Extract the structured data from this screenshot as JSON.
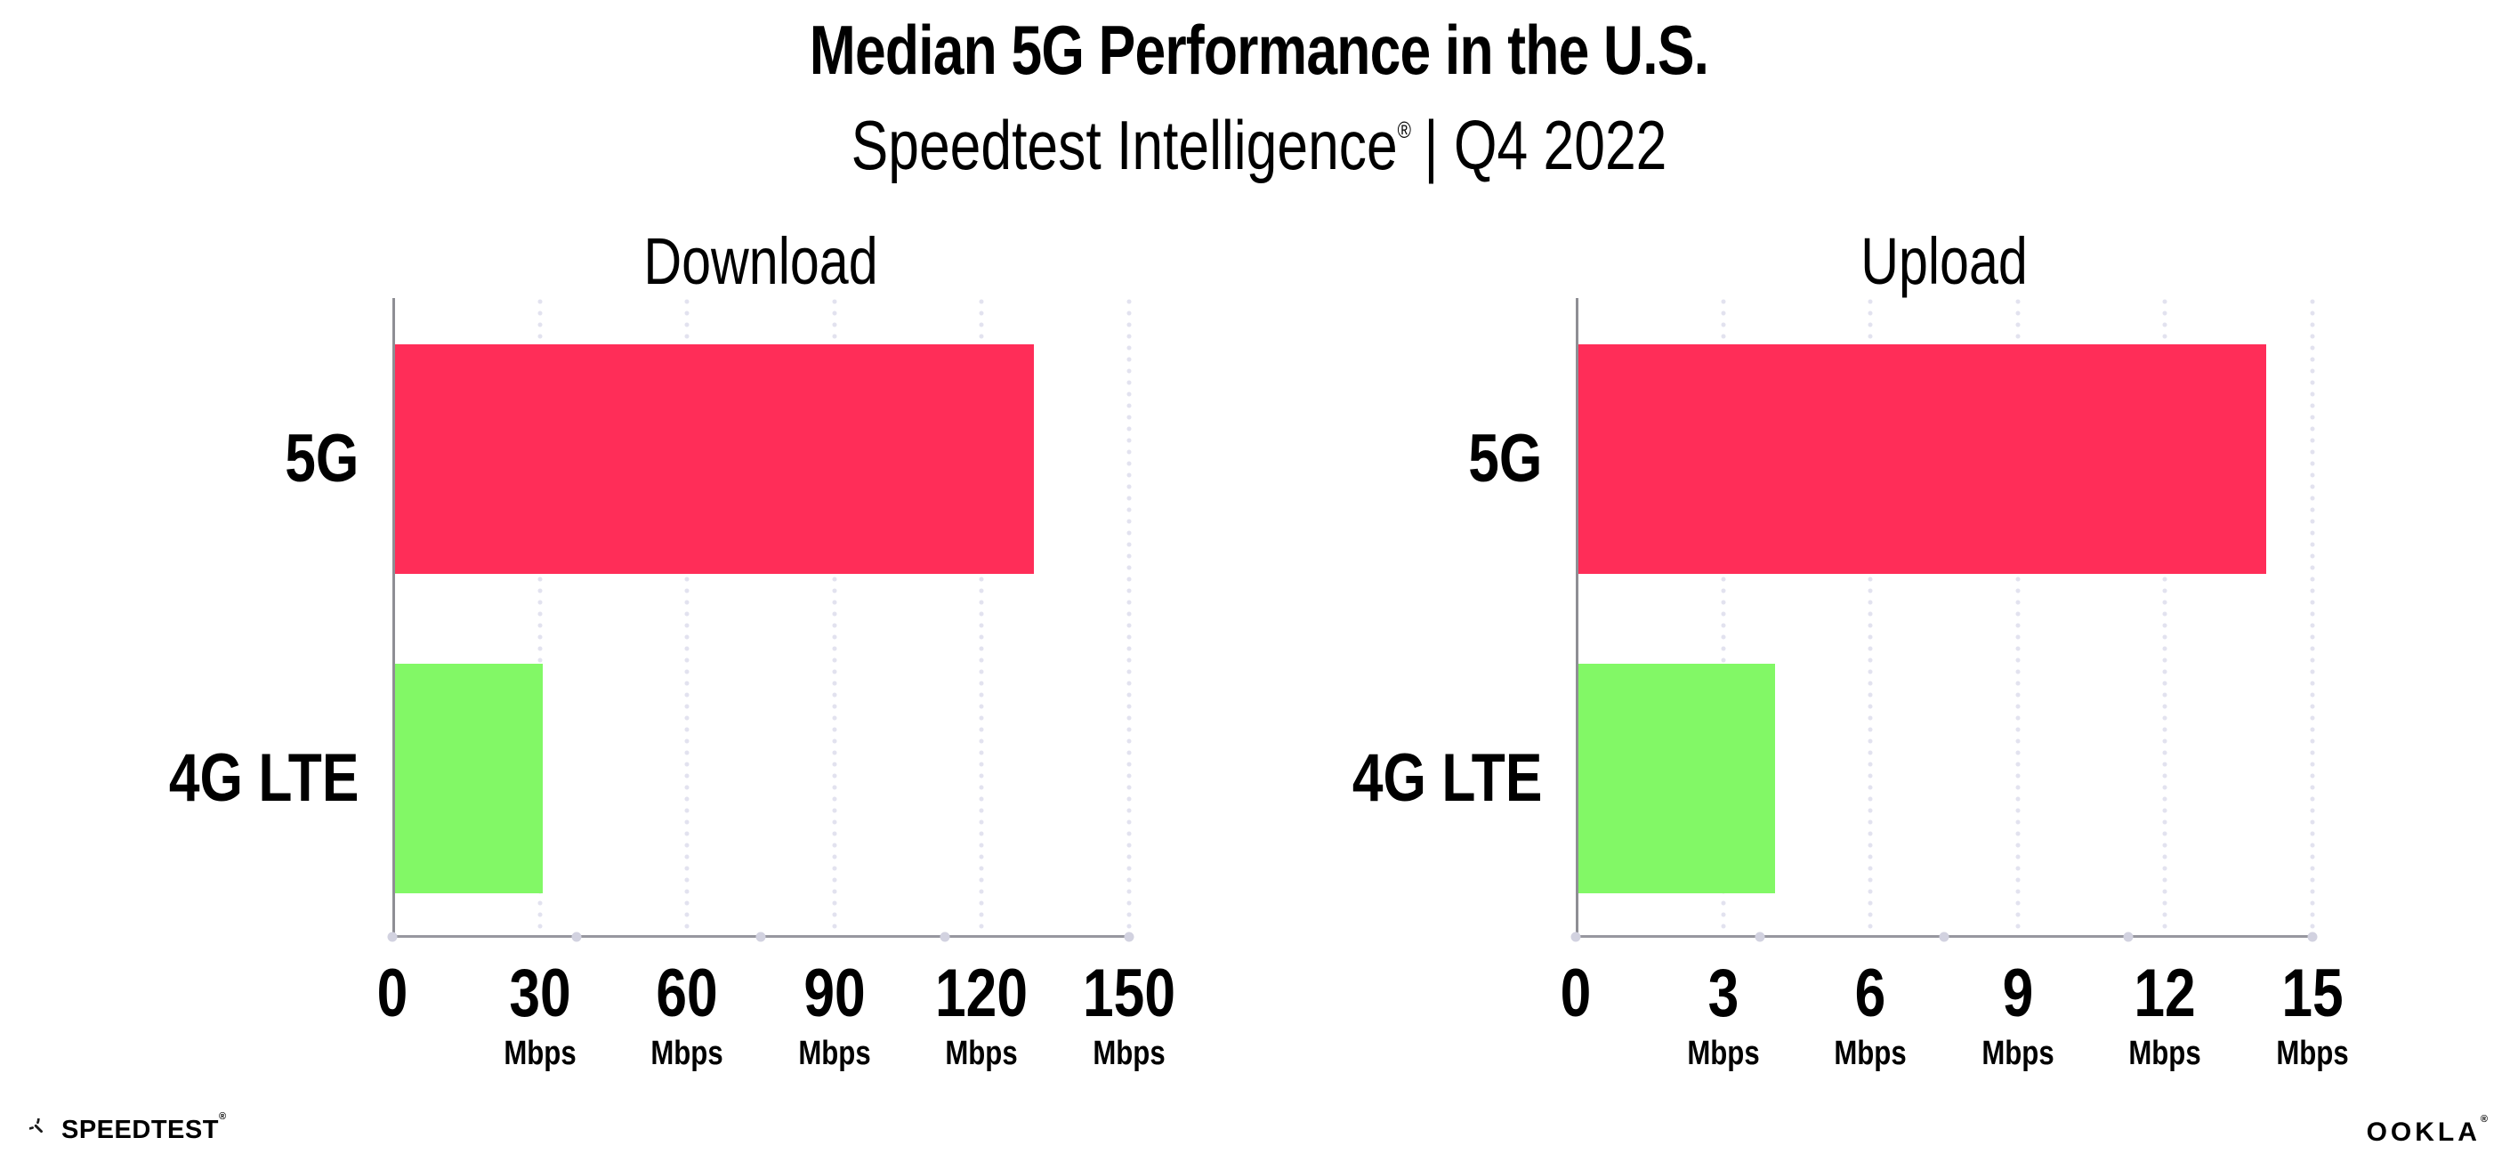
{
  "header": {
    "title": "Median 5G Performance in the U.S.",
    "subtitle_brand": "Speedtest Intelligence",
    "subtitle_reg": "®",
    "subtitle_rest": "| Q4 2022"
  },
  "chart_data": [
    {
      "type": "bar",
      "orientation": "horizontal",
      "title": "Download",
      "categories": [
        "5G",
        "4G LTE"
      ],
      "values": [
        130,
        30
      ],
      "unit": "Mbps",
      "xlabel": "",
      "xlim": [
        0,
        150
      ],
      "ticks": [
        0,
        30,
        60,
        90,
        120,
        150
      ],
      "bar_colors": [
        "#FF2D58",
        "#82F866"
      ],
      "grid": "dotted-vertical",
      "legend": "none"
    },
    {
      "type": "bar",
      "orientation": "horizontal",
      "title": "Upload",
      "categories": [
        "5G",
        "4G LTE"
      ],
      "values": [
        14,
        4
      ],
      "unit": "Mbps",
      "xlabel": "",
      "xlim": [
        0,
        15
      ],
      "ticks": [
        0,
        3,
        6,
        9,
        12,
        15
      ],
      "bar_colors": [
        "#FF2D58",
        "#82F866"
      ],
      "grid": "dotted-vertical",
      "legend": "none"
    }
  ],
  "palette": {
    "bar_5g": "#FF2D58",
    "bar_4g_lte": "#82F866",
    "axis": "#97979F",
    "gridline": "#E2E2EF",
    "axis_dot": "#D2D2E0",
    "text": "#000000"
  },
  "footer": {
    "speedtest_label": "SPEEDTEST",
    "speedtest_reg": "®",
    "ookla_label": "OOKLA",
    "ookla_reg": "®"
  }
}
